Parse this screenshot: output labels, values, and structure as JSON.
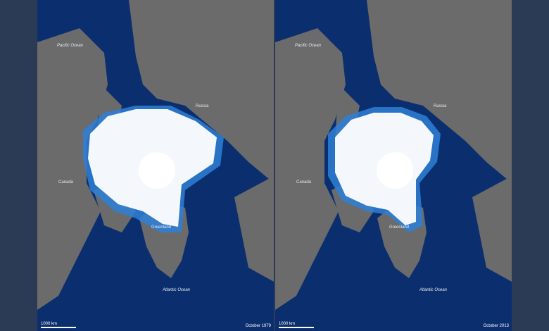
{
  "colors": {
    "ocean": "#0b2f6e",
    "land": "#6b6b6b",
    "ice": "#f4f8fc",
    "ice_edge": "#2e7fd6"
  },
  "scale_label": "1000 km",
  "panels": [
    {
      "date": "October 1979",
      "pacific": "Pacific Ocean",
      "russia": "Russia",
      "canada": "Canada",
      "greenland": "Greenland",
      "atlantic": "Atlantic Ocean"
    },
    {
      "date": "October 2013",
      "pacific": "Pacific Ocean",
      "russia": "Russia",
      "canada": "Canada",
      "greenland": "Greenland",
      "atlantic": "Atlantic Ocean"
    }
  ]
}
